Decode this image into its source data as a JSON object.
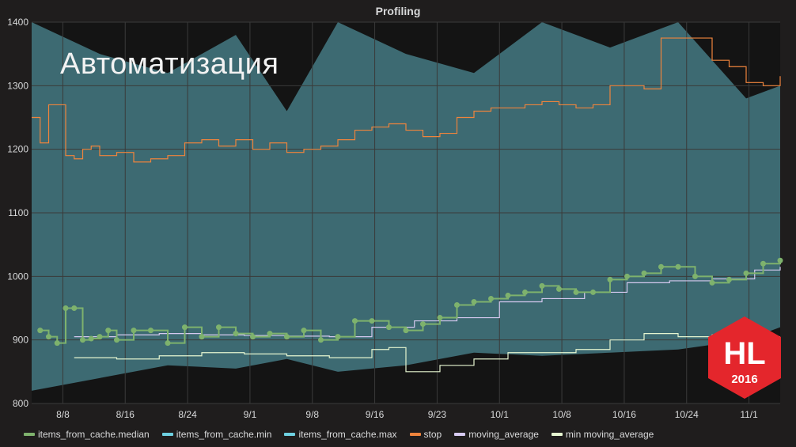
{
  "slide": {
    "heading": "Автоматизация"
  },
  "panel": {
    "title": "Profiling"
  },
  "badge": {
    "text": "HL",
    "year": "2016",
    "color": "#e4262c"
  },
  "chart_data": {
    "type": "line",
    "title": "Profiling",
    "ylim": [
      800,
      1400
    ],
    "y_ticks": [
      800,
      900,
      1000,
      1100,
      1200,
      1300,
      1400
    ],
    "x_ticks": [
      "8/8",
      "8/16",
      "8/24",
      "9/1",
      "9/8",
      "9/16",
      "9/23",
      "10/1",
      "10/8",
      "10/16",
      "10/24",
      "11/1"
    ],
    "x_range_days": [
      0,
      88
    ],
    "grid": true,
    "legend_position": "bottom",
    "colors": {
      "median": "#7eb26d",
      "min": "#6ed0e0",
      "max": "#6ed0e0",
      "stop": "#ef843c",
      "moving_average": "#d6c9f0",
      "min_moving_average": "#e5f5d0",
      "band": "#447983"
    },
    "series": [
      {
        "name": "items_from_cache.median",
        "color": "#7eb26d",
        "x": [
          1,
          2,
          3,
          4,
          5,
          6,
          7,
          8,
          9,
          10,
          12,
          14,
          16,
          18,
          20,
          22,
          24,
          26,
          28,
          30,
          32,
          34,
          36,
          38,
          40,
          42,
          44,
          46,
          48,
          50,
          52,
          54,
          56,
          58,
          60,
          62,
          64,
          66,
          68,
          70,
          72,
          74,
          76,
          78,
          80,
          82,
          84,
          86,
          88
        ],
        "y": [
          915,
          905,
          895,
          950,
          950,
          900,
          902,
          905,
          915,
          900,
          915,
          915,
          895,
          920,
          905,
          920,
          910,
          905,
          910,
          905,
          915,
          900,
          905,
          930,
          930,
          920,
          915,
          925,
          935,
          955,
          960,
          965,
          970,
          975,
          985,
          980,
          975,
          975,
          995,
          1000,
          1005,
          1015,
          1015,
          1000,
          990,
          995,
          1005,
          1020,
          1025
        ]
      },
      {
        "name": "items_from_cache.min",
        "color": "#6ed0e0",
        "x": [
          0,
          8,
          16,
          24,
          30,
          36,
          44,
          52,
          60,
          68,
          76,
          84,
          88
        ],
        "y": [
          820,
          840,
          860,
          855,
          870,
          850,
          860,
          880,
          875,
          880,
          885,
          900,
          920
        ]
      },
      {
        "name": "items_from_cache.max",
        "color": "#6ed0e0",
        "x": [
          0,
          8,
          16,
          24,
          30,
          36,
          44,
          52,
          60,
          68,
          76,
          84,
          88
        ],
        "y": [
          1400,
          1350,
          1320,
          1380,
          1260,
          1400,
          1350,
          1320,
          1400,
          1360,
          1400,
          1280,
          1300
        ]
      },
      {
        "name": "stop",
        "color": "#ef843c",
        "x": [
          0,
          1,
          2,
          3,
          4,
          5,
          6,
          7,
          8,
          10,
          12,
          14,
          16,
          18,
          20,
          22,
          24,
          26,
          28,
          30,
          32,
          34,
          36,
          38,
          40,
          42,
          44,
          46,
          48,
          50,
          52,
          54,
          56,
          58,
          60,
          62,
          64,
          66,
          68,
          70,
          72,
          74,
          76,
          78,
          80,
          82,
          84,
          86,
          88
        ],
        "y": [
          1250,
          1210,
          1270,
          1270,
          1190,
          1185,
          1200,
          1205,
          1190,
          1195,
          1180,
          1185,
          1190,
          1210,
          1215,
          1205,
          1215,
          1200,
          1210,
          1195,
          1200,
          1205,
          1215,
          1230,
          1235,
          1240,
          1230,
          1220,
          1225,
          1250,
          1260,
          1265,
          1265,
          1270,
          1275,
          1270,
          1265,
          1270,
          1300,
          1300,
          1295,
          1375,
          1375,
          1375,
          1340,
          1330,
          1305,
          1300,
          1315
        ]
      },
      {
        "name": "moving_average",
        "color": "#d6c9f0",
        "x": [
          5,
          10,
          15,
          20,
          25,
          30,
          35,
          40,
          45,
          50,
          55,
          60,
          65,
          70,
          75,
          80,
          85,
          88
        ],
        "y": [
          905,
          908,
          910,
          908,
          907,
          906,
          905,
          920,
          930,
          935,
          960,
          965,
          975,
          990,
          993,
          996,
          1010,
          1015
        ]
      },
      {
        "name": "min moving_average",
        "color": "#e5f5d0",
        "x": [
          5,
          10,
          15,
          20,
          25,
          30,
          35,
          40,
          42,
          44,
          48,
          52,
          56,
          60,
          64,
          68,
          72,
          76,
          80,
          84,
          88
        ],
        "y": [
          872,
          870,
          875,
          880,
          878,
          875,
          872,
          885,
          888,
          850,
          860,
          870,
          880,
          880,
          885,
          900,
          910,
          905,
          908,
          905,
          905
        ]
      }
    ]
  }
}
